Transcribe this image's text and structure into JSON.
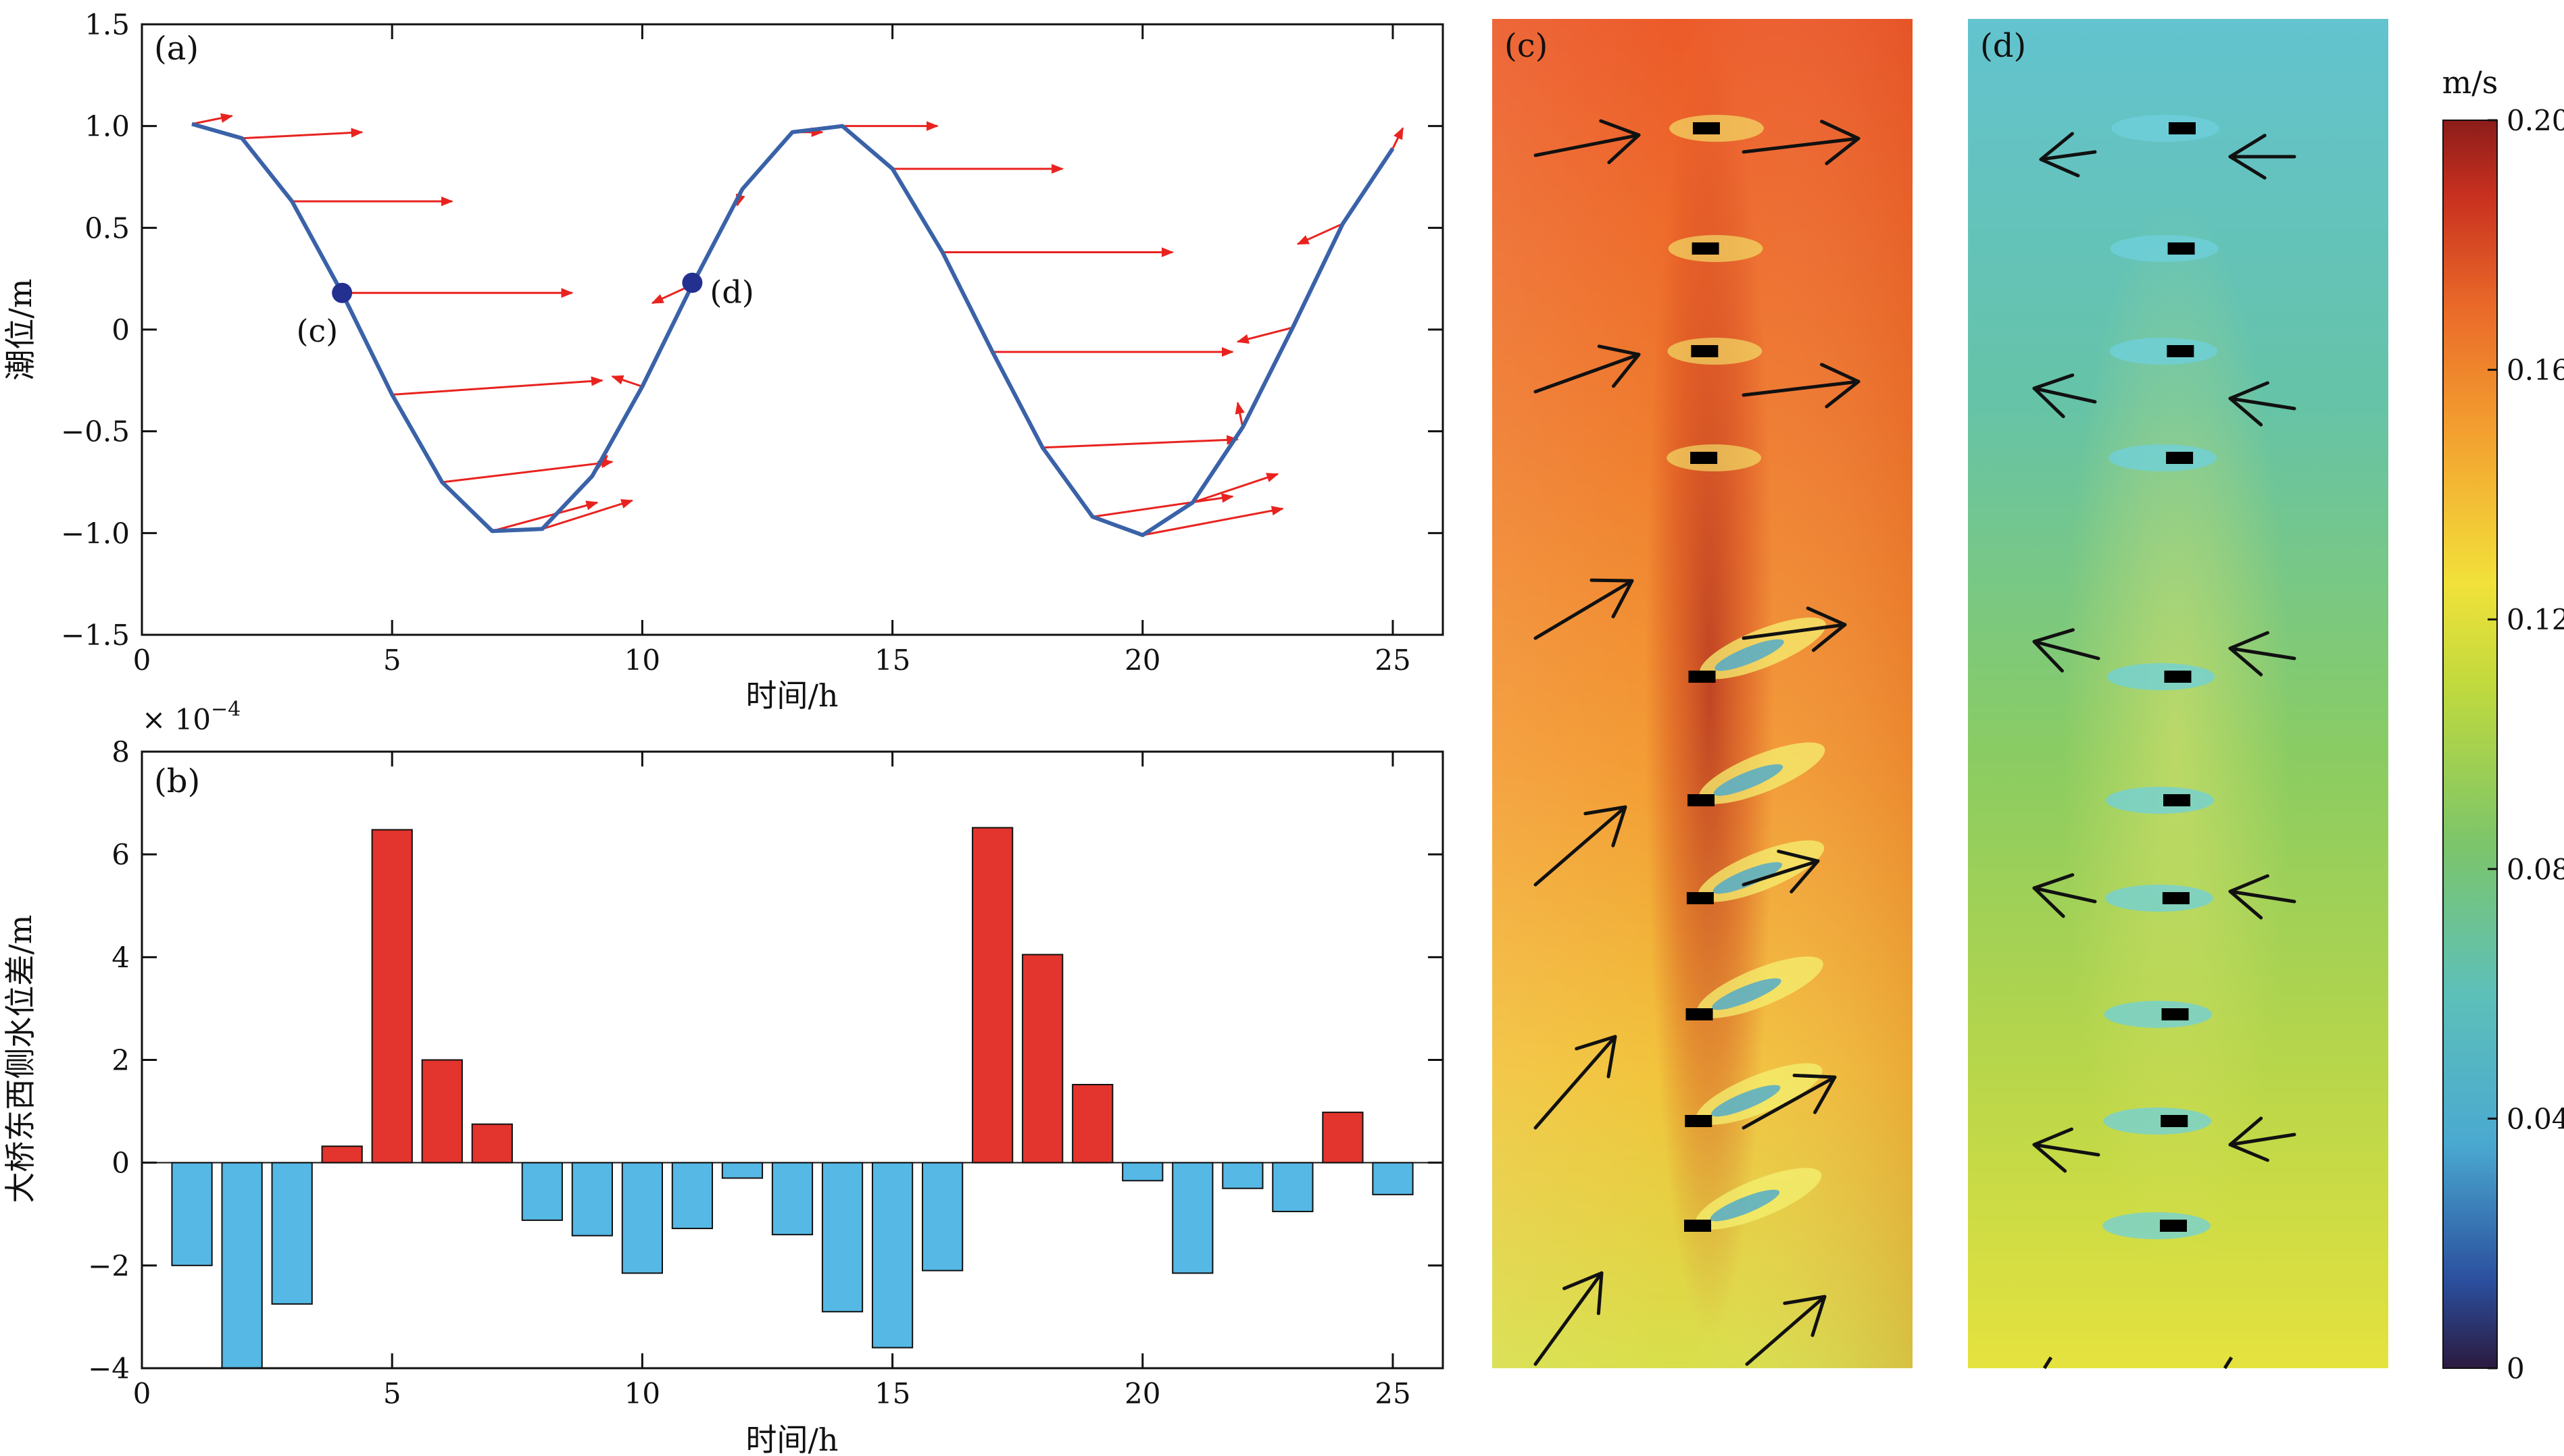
{
  "colors": {
    "line": "#3a62a8",
    "marker": "#23308f",
    "arrow_red": "#e8231f",
    "bar_pos": "#e3342d",
    "bar_neg": "#55b8e5",
    "arrow_black": "#111111"
  },
  "chart_data": [
    {
      "id": "a",
      "type": "line",
      "panel_label": "(a)",
      "xlabel": "时间/h",
      "ylabel": "潮位/m",
      "xlim": [
        0,
        26
      ],
      "ylim": [
        -1.5,
        1.5
      ],
      "x_ticks": [
        "0",
        "5",
        "10",
        "15",
        "20",
        "25"
      ],
      "y_ticks": [
        "1.5",
        "1.0",
        "0.5",
        "0",
        "−0.5",
        "−1.0",
        "−1.5"
      ],
      "x_tick_values": [
        0,
        5,
        10,
        15,
        20,
        25
      ],
      "y_tick_values": [
        1.5,
        1.0,
        0.5,
        0,
        -0.5,
        -1.0,
        -1.5
      ],
      "series": [
        {
          "x": [
            1,
            2,
            3,
            4,
            5,
            6,
            7,
            8,
            9,
            10,
            11,
            12,
            13,
            14,
            15,
            16,
            17,
            18,
            19,
            20,
            21,
            22,
            23,
            24,
            25
          ],
          "y": [
            1.01,
            0.94,
            0.63,
            0.18,
            -0.32,
            -0.75,
            -0.99,
            -0.98,
            -0.72,
            -0.28,
            0.22,
            0.69,
            0.97,
            1.0,
            0.79,
            0.38,
            -0.11,
            -0.58,
            -0.92,
            -1.01,
            -0.85,
            -0.48,
            0.01,
            0.52,
            0.89
          ]
        }
      ],
      "current_vectors": {
        "u": [
          0.8,
          2.4,
          3.2,
          4.6,
          4.2,
          3.4,
          2.1,
          1.8,
          0.3,
          -0.6,
          -0.8,
          -0.1,
          0.6,
          1.9,
          3.4,
          4.6,
          4.8,
          3.9,
          2.8,
          2.8,
          1.7,
          -0.1,
          -1.1,
          -0.9,
          0.2
        ],
        "v": [
          0.04,
          0.03,
          0.0,
          0.0,
          0.07,
          0.1,
          0.14,
          0.14,
          0.1,
          0.05,
          -0.09,
          -0.08,
          0.0,
          0.0,
          0.0,
          0.0,
          0.0,
          0.04,
          0.1,
          0.13,
          0.14,
          0.12,
          -0.07,
          -0.1,
          0.1
        ]
      },
      "markers": [
        {
          "label": "(c)",
          "x": 4,
          "y": 0.18,
          "text_side": "below-left"
        },
        {
          "label": "(d)",
          "x": 11,
          "y": 0.23,
          "text_side": "right"
        }
      ]
    },
    {
      "id": "b",
      "type": "bar",
      "panel_label": "(b)",
      "xlabel": "时间/h",
      "ylabel": "大桥东西侧水位差/m",
      "multiplier": "× 10",
      "multiplier_exp": "−4",
      "xlim": [
        0,
        26
      ],
      "ylim": [
        -4,
        8
      ],
      "x_ticks": [
        "0",
        "5",
        "10",
        "15",
        "20",
        "25"
      ],
      "y_ticks": [
        "8",
        "6",
        "4",
        "2",
        "0",
        "−2",
        "−4"
      ],
      "x_tick_values": [
        0,
        5,
        10,
        15,
        20,
        25
      ],
      "y_tick_values": [
        8,
        6,
        4,
        2,
        0,
        -2,
        -4
      ],
      "x": [
        1,
        2,
        3,
        4,
        5,
        6,
        7,
        8,
        9,
        10,
        11,
        12,
        13,
        14,
        15,
        16,
        17,
        18,
        19,
        20,
        21,
        22,
        23,
        24,
        25
      ],
      "values": [
        -2.0,
        -4.0,
        -2.75,
        0.32,
        6.48,
        2.0,
        0.75,
        -1.12,
        -1.42,
        -2.15,
        -1.28,
        -0.3,
        -1.4,
        -2.9,
        -3.6,
        -2.1,
        6.52,
        4.05,
        1.52,
        -0.35,
        -2.15,
        -0.5,
        -0.95,
        0.98,
        -0.62
      ]
    },
    {
      "id": "c",
      "type": "heatmap",
      "panel_label": "(c)",
      "arrows": "eastward"
    },
    {
      "id": "d",
      "type": "heatmap",
      "panel_label": "(d)",
      "arrows": "westward"
    },
    {
      "id": "colorbar",
      "type": "heatmap",
      "unit": "m/s",
      "range": [
        0,
        0.2
      ],
      "ticks": [
        "0.20",
        "0.16",
        "0.12",
        "0.08",
        "0.04",
        "0"
      ],
      "tick_values": [
        0.2,
        0.16,
        0.12,
        0.08,
        0.04,
        0
      ]
    }
  ]
}
